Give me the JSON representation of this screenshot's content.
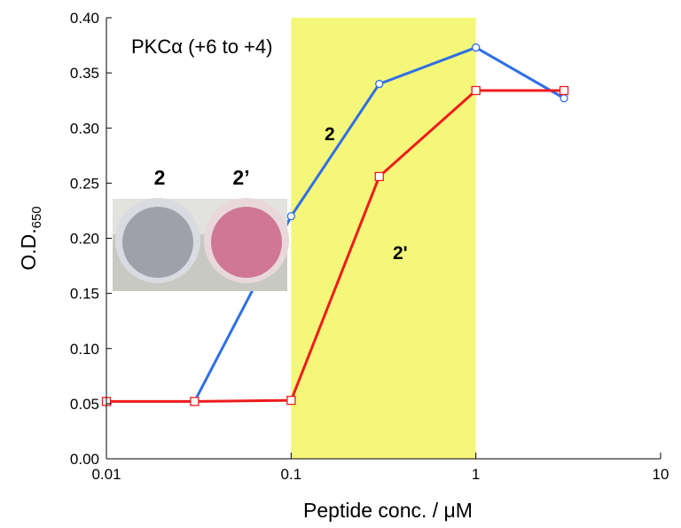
{
  "chart_data": {
    "type": "line",
    "x_label": "Peptide conc. / μM",
    "y_label": "O.D.",
    "y_label_sub": "650",
    "annotations": [
      "PKCα (+6 to +4)",
      "2",
      "2'"
    ],
    "inset_labels": [
      "2",
      "2’"
    ],
    "log_x": true,
    "xlim": [
      0.01,
      10
    ],
    "xticks": [
      0.01,
      0.1,
      1,
      10
    ],
    "ylim": [
      0,
      0.4
    ],
    "yticks": [
      {
        "value": 0,
        "label": "0.00"
      },
      0.05,
      {
        "value": 0.1,
        "label": "0.10"
      },
      0.15,
      {
        "value": 0.2,
        "label": "0.20"
      },
      0.25,
      {
        "value": 0.3,
        "label": "0.30"
      },
      0.35,
      {
        "value": 0.4,
        "label": "0.40"
      }
    ],
    "shade": [
      0.1,
      1
    ],
    "shade_color": "#f4f77a",
    "series": [
      {
        "name": "2",
        "color": "#2f6fe6",
        "marker": "circle",
        "x": [
          0.03,
          0.1,
          0.3,
          1,
          3
        ],
        "values": [
          0.052,
          0.22,
          0.34,
          0.373,
          0.327
        ]
      },
      {
        "name": "2'",
        "color": "#ee1c1c",
        "marker": "square",
        "x": [
          0.01,
          0.03,
          0.1,
          0.3,
          1,
          3
        ],
        "values": [
          0.052,
          0.052,
          0.053,
          0.256,
          0.334,
          0.334
        ]
      }
    ]
  }
}
